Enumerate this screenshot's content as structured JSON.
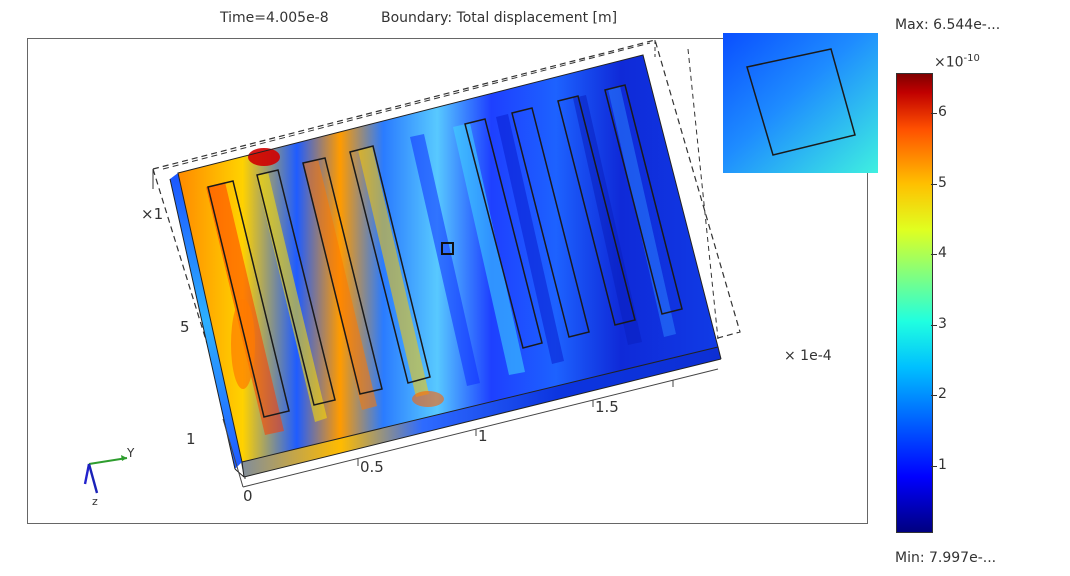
{
  "header": {
    "time_label": "Time=4.005e-8",
    "boundary_label": "Boundary: Total displacement  [m]"
  },
  "plot": {
    "axis_ticks": {
      "x": [
        "0",
        "0.5",
        "1",
        "1.5"
      ],
      "y_left": [
        "×1",
        "5",
        "1"
      ]
    },
    "scale_label": "× 1e-4",
    "triad": {
      "y_label": "Y",
      "z_label": "z"
    }
  },
  "colorbar": {
    "max_label": "Max: 6.544e-...",
    "min_label": "Min: 7.997e-...",
    "exponent_base": "×10",
    "exponent_power": "-10",
    "ticks": [
      "6",
      "5",
      "4",
      "3",
      "2",
      "1"
    ],
    "colors": {
      "low": "#000080",
      "mid": "#20ffe0",
      "high": "#800000"
    }
  },
  "icons": {
    "triad": "axis-triad-icon"
  }
}
